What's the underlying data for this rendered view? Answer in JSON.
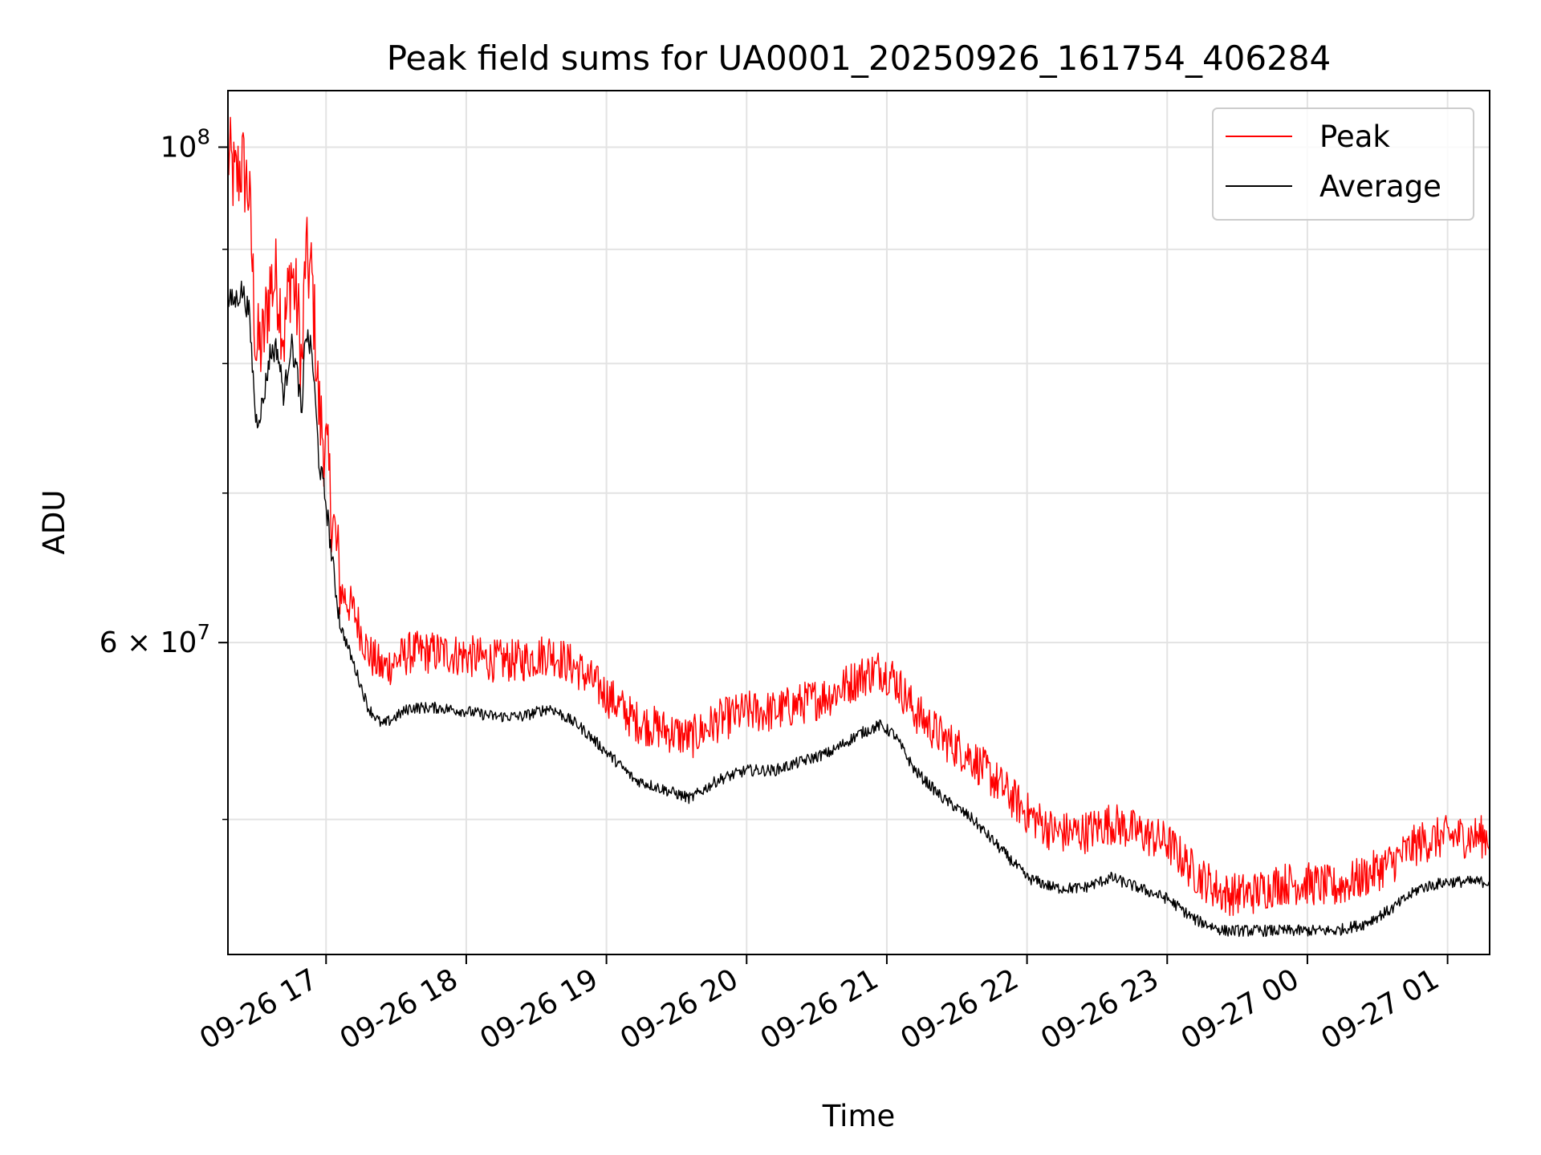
{
  "chart_data": {
    "type": "line",
    "title": "Peak field sums for UA0001_20250926_161754_406284",
    "xlabel": "Time",
    "ylabel": "ADU",
    "y_scale": "log",
    "ylim": [
      43500000,
      106000000
    ],
    "x_range_hours": [
      16.3,
      25.3
    ],
    "x_ticks": [
      {
        "label": "09-26 17",
        "hour": 17
      },
      {
        "label": "09-26 18",
        "hour": 18
      },
      {
        "label": "09-26 19",
        "hour": 19
      },
      {
        "label": "09-26 20",
        "hour": 20
      },
      {
        "label": "09-26 21",
        "hour": 21
      },
      {
        "label": "09-26 22",
        "hour": 22
      },
      {
        "label": "09-26 23",
        "hour": 23
      },
      {
        "label": "09-27 00",
        "hour": 24
      },
      {
        "label": "09-27 01",
        "hour": 25
      }
    ],
    "y_major_ticks": [
      {
        "base": "10",
        "exp": "8",
        "prefix": "",
        "value": 100000000
      },
      {
        "base": "10",
        "exp": "7",
        "prefix": "6 × ",
        "value": 60000000
      }
    ],
    "y_minor_ticks": [
      90000000,
      80000000,
      70000000,
      50000000
    ],
    "grid": true,
    "legend_position": "top-right",
    "series": [
      {
        "name": "Peak",
        "color": "#ff0000",
        "x_hours": [
          16.3,
          16.35,
          16.4,
          16.45,
          16.5,
          16.55,
          16.6,
          16.65,
          16.7,
          16.75,
          16.8,
          16.83,
          16.85,
          16.9,
          16.95,
          17.0,
          17.05,
          17.1,
          17.2,
          17.3,
          17.4,
          17.5,
          17.6,
          17.8,
          18.0,
          18.2,
          18.4,
          18.6,
          18.8,
          19.0,
          19.2,
          19.4,
          19.6,
          19.8,
          20.0,
          20.2,
          20.4,
          20.6,
          20.8,
          20.95,
          21.05,
          21.2,
          21.4,
          21.6,
          21.8,
          22.0,
          22.2,
          22.4,
          22.6,
          22.8,
          23.0,
          23.2,
          23.4,
          23.6,
          23.8,
          24.0,
          24.2,
          24.4,
          24.6,
          24.7,
          24.8,
          25.0,
          25.2,
          25.3
        ],
        "y": [
          98000000,
          95000000,
          97000000,
          94000000,
          80000000,
          80500000,
          85500000,
          86000000,
          81000000,
          87000000,
          83000000,
          78000000,
          88000000,
          86000000,
          75000000,
          72000000,
          67000000,
          63000000,
          61500000,
          59000000,
          58000000,
          58500000,
          59000000,
          59000000,
          58800000,
          58500000,
          58500000,
          59000000,
          58000000,
          56500000,
          55000000,
          54500000,
          54000000,
          55000000,
          55500000,
          55500000,
          56000000,
          56500000,
          57500000,
          58000000,
          57500000,
          55500000,
          54000000,
          53000000,
          51500000,
          50000000,
          49000000,
          49000000,
          49500000,
          49000000,
          48500000,
          47000000,
          46000000,
          46000000,
          46500000,
          46500000,
          46300000,
          46800000,
          47500000,
          48000000,
          48500000,
          48800000,
          48800000,
          48800000
        ]
      },
      {
        "name": "Average",
        "color": "#000000",
        "x_hours": [
          16.3,
          16.35,
          16.4,
          16.45,
          16.5,
          16.55,
          16.6,
          16.65,
          16.7,
          16.75,
          16.8,
          16.83,
          16.85,
          16.9,
          16.95,
          17.0,
          17.05,
          17.1,
          17.2,
          17.3,
          17.4,
          17.5,
          17.6,
          17.8,
          18.0,
          18.2,
          18.4,
          18.6,
          18.8,
          19.0,
          19.2,
          19.4,
          19.6,
          19.8,
          20.0,
          20.2,
          20.4,
          20.6,
          20.8,
          20.95,
          21.05,
          21.2,
          21.4,
          21.6,
          21.8,
          22.0,
          22.2,
          22.4,
          22.6,
          22.8,
          23.0,
          23.2,
          23.4,
          23.6,
          23.8,
          24.0,
          24.2,
          24.4,
          24.6,
          24.7,
          24.8,
          25.0,
          25.2,
          25.3
        ],
        "y": [
          85000000,
          85000000,
          86000000,
          84000000,
          75000000,
          76500000,
          80500000,
          81000000,
          77000000,
          81500000,
          78500000,
          75000000,
          82500000,
          80500000,
          72000000,
          69000000,
          64500000,
          61000000,
          58500000,
          56000000,
          55000000,
          55500000,
          56000000,
          56000000,
          55800000,
          55500000,
          55500000,
          56000000,
          55000000,
          53500000,
          52000000,
          51500000,
          51000000,
          52000000,
          52500000,
          52500000,
          53000000,
          53500000,
          54500000,
          55000000,
          54500000,
          52500000,
          51000000,
          50000000,
          48500000,
          47000000,
          46500000,
          46500000,
          47000000,
          46500000,
          46000000,
          45000000,
          44500000,
          44500000,
          44500000,
          44500000,
          44500000,
          44800000,
          45500000,
          46000000,
          46500000,
          46800000,
          46800000,
          46800000
        ]
      }
    ]
  }
}
